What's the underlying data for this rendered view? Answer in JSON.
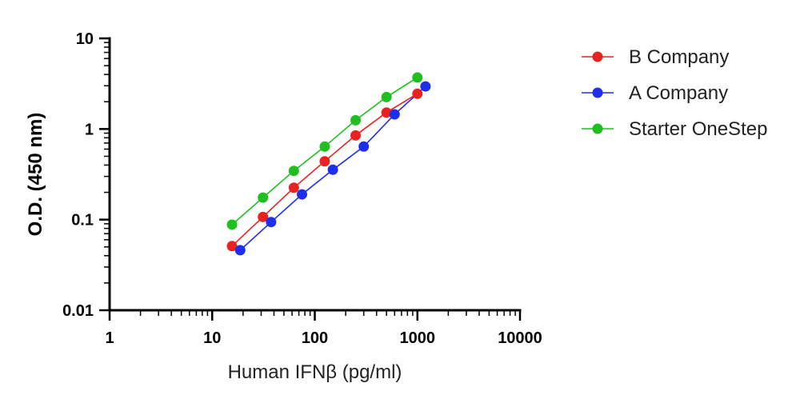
{
  "chart_data": {
    "type": "line",
    "xscale": "log",
    "yscale": "log",
    "xlabel": "Human IFNβ (pg/ml)",
    "ylabel": "O.D. (450 nm)",
    "xlim": [
      1,
      10000
    ],
    "ylim": [
      0.01,
      10
    ],
    "xticks": [
      "1",
      "10",
      "100",
      "1000",
      "10000"
    ],
    "yticks": [
      "0.01",
      "0.1",
      "1",
      "10"
    ],
    "legend": "right",
    "grid": false,
    "series": [
      {
        "name": "B Company",
        "color": "#e8221f",
        "x": [
          15.6,
          31.25,
          62.5,
          125,
          250,
          500,
          1000
        ],
        "y": [
          0.051,
          0.107,
          0.225,
          0.44,
          0.85,
          1.52,
          2.45
        ]
      },
      {
        "name": "A Company",
        "color": "#1f2ee8",
        "x": [
          18.75,
          37.5,
          75,
          150,
          300,
          600,
          1200
        ],
        "y": [
          0.046,
          0.094,
          0.19,
          0.355,
          0.64,
          1.45,
          2.95
        ]
      },
      {
        "name": "Starter OneStep",
        "color": "#1fbf1f",
        "x": [
          15.6,
          31.25,
          62.5,
          125,
          250,
          500,
          1000
        ],
        "y": [
          0.088,
          0.175,
          0.345,
          0.64,
          1.25,
          2.25,
          3.7
        ]
      }
    ]
  }
}
